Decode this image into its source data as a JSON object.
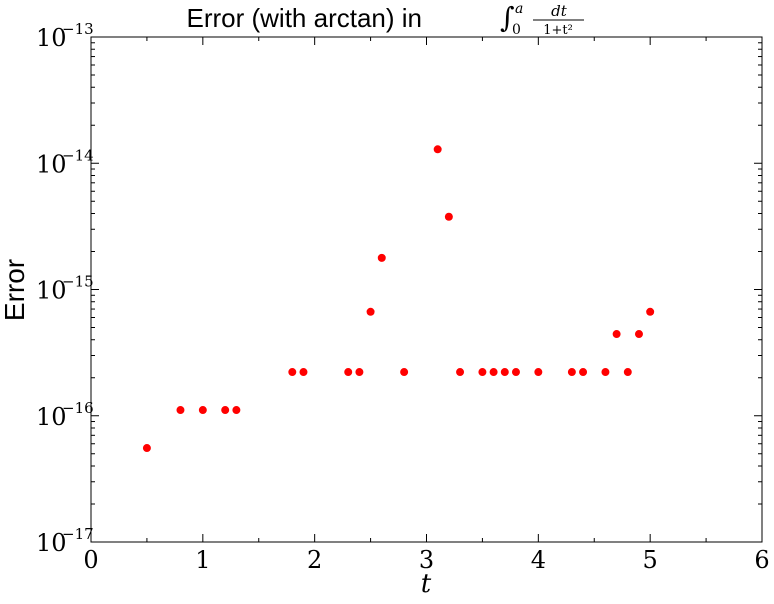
{
  "chart_data": {
    "type": "scatter",
    "title": "Error (with arctan) in",
    "title_math": {
      "integral": "∫",
      "lower": "0",
      "upper": "a",
      "numerator": "dt",
      "denominator": "1+t²"
    },
    "xlabel": "t",
    "ylabel": "Error",
    "xlim": [
      0,
      6
    ],
    "ylim": [
      1e-17,
      1e-13
    ],
    "y_scale": "log",
    "grid": false,
    "legend": "none",
    "x_ticks": [
      {
        "value": 0,
        "label": "0"
      },
      {
        "value": 1,
        "label": "1"
      },
      {
        "value": 2,
        "label": "2"
      },
      {
        "value": 3,
        "label": "3"
      },
      {
        "value": 4,
        "label": "4"
      },
      {
        "value": 5,
        "label": "5"
      },
      {
        "value": 6,
        "label": "6"
      }
    ],
    "y_ticks": [
      {
        "value": 1e-17,
        "base": "10",
        "exp": "−17"
      },
      {
        "value": 1e-16,
        "base": "10",
        "exp": "−16"
      },
      {
        "value": 1e-15,
        "base": "10",
        "exp": "−15"
      },
      {
        "value": 1e-14,
        "base": "10",
        "exp": "−14"
      },
      {
        "value": 1e-13,
        "base": "10",
        "exp": "−13"
      }
    ],
    "marker_color": "#ff0000",
    "points": [
      {
        "x": 0.5,
        "y": 5.55e-17
      },
      {
        "x": 0.8,
        "y": 1.11e-16
      },
      {
        "x": 1.0,
        "y": 1.11e-16
      },
      {
        "x": 1.2,
        "y": 1.11e-16
      },
      {
        "x": 1.3,
        "y": 1.11e-16
      },
      {
        "x": 1.8,
        "y": 2.22e-16
      },
      {
        "x": 1.9,
        "y": 2.22e-16
      },
      {
        "x": 2.3,
        "y": 2.22e-16
      },
      {
        "x": 2.4,
        "y": 2.22e-16
      },
      {
        "x": 2.5,
        "y": 6.66e-16
      },
      {
        "x": 2.6,
        "y": 1.78e-15
      },
      {
        "x": 2.8,
        "y": 2.22e-16
      },
      {
        "x": 3.1,
        "y": 1.29e-14
      },
      {
        "x": 3.2,
        "y": 3.77e-15
      },
      {
        "x": 3.3,
        "y": 2.22e-16
      },
      {
        "x": 3.5,
        "y": 2.22e-16
      },
      {
        "x": 3.6,
        "y": 2.22e-16
      },
      {
        "x": 3.7,
        "y": 2.22e-16
      },
      {
        "x": 3.8,
        "y": 2.22e-16
      },
      {
        "x": 4.0,
        "y": 2.22e-16
      },
      {
        "x": 4.3,
        "y": 2.22e-16
      },
      {
        "x": 4.4,
        "y": 2.22e-16
      },
      {
        "x": 4.6,
        "y": 2.22e-16
      },
      {
        "x": 4.7,
        "y": 4.44e-16
      },
      {
        "x": 4.8,
        "y": 2.22e-16
      },
      {
        "x": 4.9,
        "y": 4.44e-16
      },
      {
        "x": 5.0,
        "y": 6.66e-16
      }
    ]
  }
}
